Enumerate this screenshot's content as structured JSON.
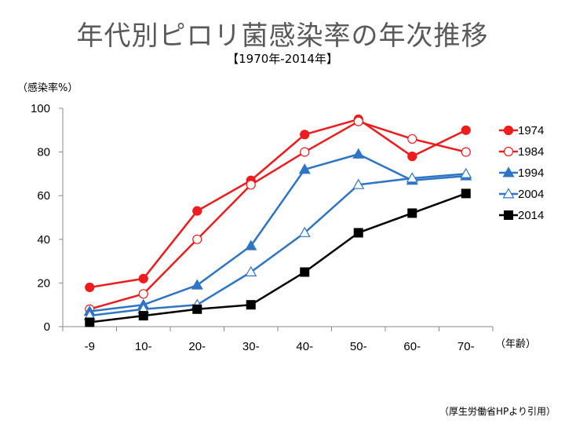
{
  "header": {
    "title": "年代別ピロリ菌感染率の年次推移",
    "subtitle": "【1970年-2014年】"
  },
  "source": "（厚生労働省HPより引用）",
  "chart_data": {
    "type": "line",
    "ylabel": "（感染率%）",
    "xlabel": "（年齢）",
    "categories": [
      "-9",
      "10-",
      "20-",
      "30-",
      "40-",
      "50-",
      "60-",
      "70-"
    ],
    "ylim": [
      0,
      100
    ],
    "yticks": [
      0,
      20,
      40,
      60,
      80,
      100
    ],
    "grid": false,
    "legend_position": "right",
    "series": [
      {
        "name": "1974",
        "color": "#ee1c1c",
        "marker": "circle",
        "filled": true,
        "values": [
          18,
          22,
          53,
          67,
          88,
          95,
          78,
          90
        ]
      },
      {
        "name": "1984",
        "color": "#ee1c1c",
        "marker": "circle",
        "filled": false,
        "values": [
          8,
          15,
          40,
          65,
          80,
          94,
          86,
          80
        ]
      },
      {
        "name": "1994",
        "color": "#2e75c6",
        "marker": "triangle",
        "filled": true,
        "values": [
          7,
          10,
          19,
          37,
          72,
          79,
          67,
          69
        ]
      },
      {
        "name": "2004",
        "color": "#2e75c6",
        "marker": "triangle",
        "filled": false,
        "values": [
          5,
          8,
          10,
          25,
          43,
          65,
          68,
          70
        ]
      },
      {
        "name": "2014",
        "color": "#000000",
        "marker": "square",
        "filled": true,
        "values": [
          2,
          5,
          8,
          10,
          25,
          43,
          52,
          61
        ]
      }
    ]
  }
}
